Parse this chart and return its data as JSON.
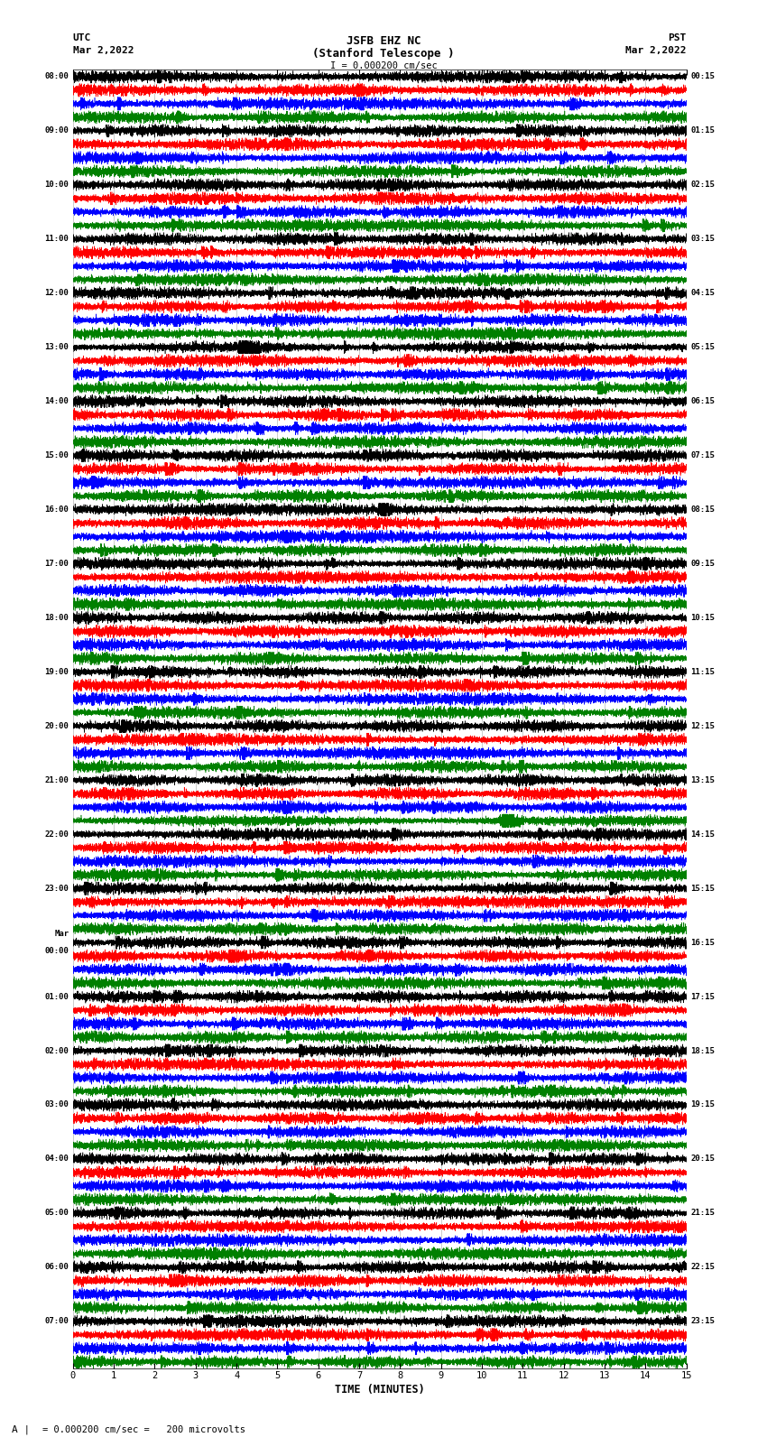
{
  "title_line1": "JSFB EHZ NC",
  "title_line2": "(Stanford Telescope )",
  "scale_label": "I = 0.000200 cm/sec",
  "utc_label": "UTC",
  "utc_date": "Mar 2,2022",
  "pst_label": "PST",
  "pst_date": "Mar 2,2022",
  "left_times": [
    "08:00",
    "09:00",
    "10:00",
    "11:00",
    "12:00",
    "13:00",
    "14:00",
    "15:00",
    "16:00",
    "17:00",
    "18:00",
    "19:00",
    "20:00",
    "21:00",
    "22:00",
    "23:00",
    "Mar\n00:00",
    "01:00",
    "02:00",
    "03:00",
    "04:00",
    "05:00",
    "06:00",
    "07:00"
  ],
  "right_times": [
    "00:15",
    "01:15",
    "02:15",
    "03:15",
    "04:15",
    "05:15",
    "06:15",
    "07:15",
    "08:15",
    "09:15",
    "10:15",
    "11:15",
    "12:15",
    "13:15",
    "14:15",
    "15:15",
    "16:15",
    "17:15",
    "18:15",
    "19:15",
    "20:15",
    "21:15",
    "22:15",
    "23:15"
  ],
  "colors": [
    "black",
    "red",
    "blue",
    "green"
  ],
  "n_rows": 24,
  "traces_per_row": 4,
  "x_min": 0,
  "x_max": 15,
  "xlabel": "TIME (MINUTES)",
  "footer_label": "= 0.000200 cm/sec =   200 microvolts",
  "footer_prefix": "A",
  "bg_color": "white",
  "fig_width": 8.5,
  "fig_height": 16.13
}
